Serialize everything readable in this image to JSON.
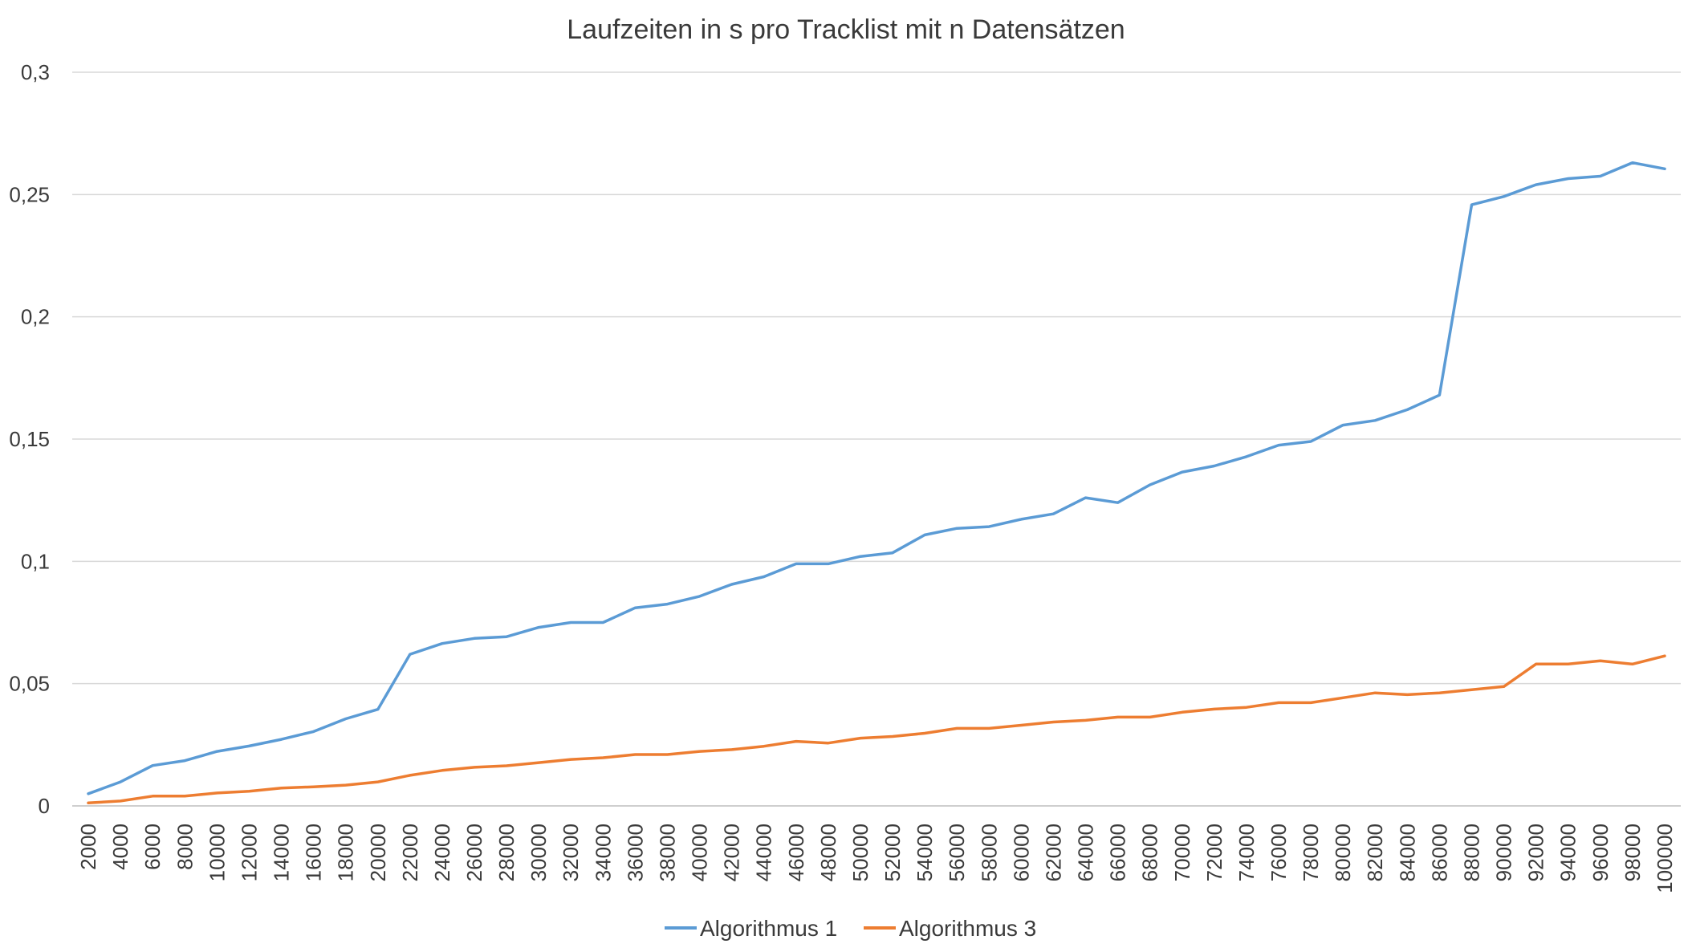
{
  "chart_data": {
    "type": "line",
    "title": "Laufzeiten in s pro Tracklist mit n Datensätzen",
    "xlabel": "",
    "ylabel": "",
    "ylim": [
      0,
      0.3
    ],
    "yticks": [
      0,
      0.05,
      0.1,
      0.15,
      0.2,
      0.25,
      0.3
    ],
    "ytick_labels": [
      "0",
      "0,05",
      "0,1",
      "0,15",
      "0,2",
      "0,25",
      "0,3"
    ],
    "grid": true,
    "legend_position": "bottom",
    "categories": [
      "2000",
      "4000",
      "6000",
      "8000",
      "10000",
      "12000",
      "14000",
      "16000",
      "18000",
      "20000",
      "22000",
      "24000",
      "26000",
      "28000",
      "30000",
      "32000",
      "34000",
      "36000",
      "38000",
      "40000",
      "42000",
      "44000",
      "46000",
      "48000",
      "50000",
      "52000",
      "54000",
      "56000",
      "58000",
      "60000",
      "62000",
      "64000",
      "66000",
      "68000",
      "70000",
      "72000",
      "74000",
      "76000",
      "78000",
      "80000",
      "82000",
      "84000",
      "86000",
      "88000",
      "90000",
      "92000",
      "94000",
      "96000",
      "98000",
      "100000"
    ],
    "series": [
      {
        "name": "Algorithmus 1",
        "color": "#5b9bd5",
        "values": [
          0.005,
          0.0098,
          0.0165,
          0.0185,
          0.0223,
          0.0245,
          0.0272,
          0.0304,
          0.0356,
          0.0395,
          0.062,
          0.0664,
          0.0685,
          0.0692,
          0.073,
          0.075,
          0.075,
          0.081,
          0.0825,
          0.0857,
          0.0906,
          0.0937,
          0.099,
          0.099,
          0.102,
          0.1035,
          0.1108,
          0.1135,
          0.1142,
          0.1172,
          0.1194,
          0.126,
          0.124,
          0.1313,
          0.1365,
          0.139,
          0.1428,
          0.1475,
          0.149,
          0.1557,
          0.1576,
          0.162,
          0.168,
          0.2458,
          0.2492,
          0.254,
          0.2565,
          0.2575,
          0.263,
          0.2605
        ]
      },
      {
        "name": "Algorithmus 3",
        "color": "#ed7d31",
        "values": [
          0.0012,
          0.002,
          0.004,
          0.004,
          0.0053,
          0.006,
          0.0073,
          0.0078,
          0.0085,
          0.0098,
          0.0125,
          0.0145,
          0.0158,
          0.0164,
          0.0177,
          0.019,
          0.0197,
          0.021,
          0.021,
          0.0223,
          0.023,
          0.0244,
          0.0264,
          0.0257,
          0.0277,
          0.0284,
          0.0297,
          0.0317,
          0.0317,
          0.033,
          0.0343,
          0.035,
          0.0363,
          0.0363,
          0.0383,
          0.0396,
          0.0403,
          0.0422,
          0.0422,
          0.0442,
          0.0462,
          0.0455,
          0.0462,
          0.0475,
          0.0488,
          0.058,
          0.058,
          0.0593,
          0.058,
          0.0613
        ]
      }
    ]
  }
}
